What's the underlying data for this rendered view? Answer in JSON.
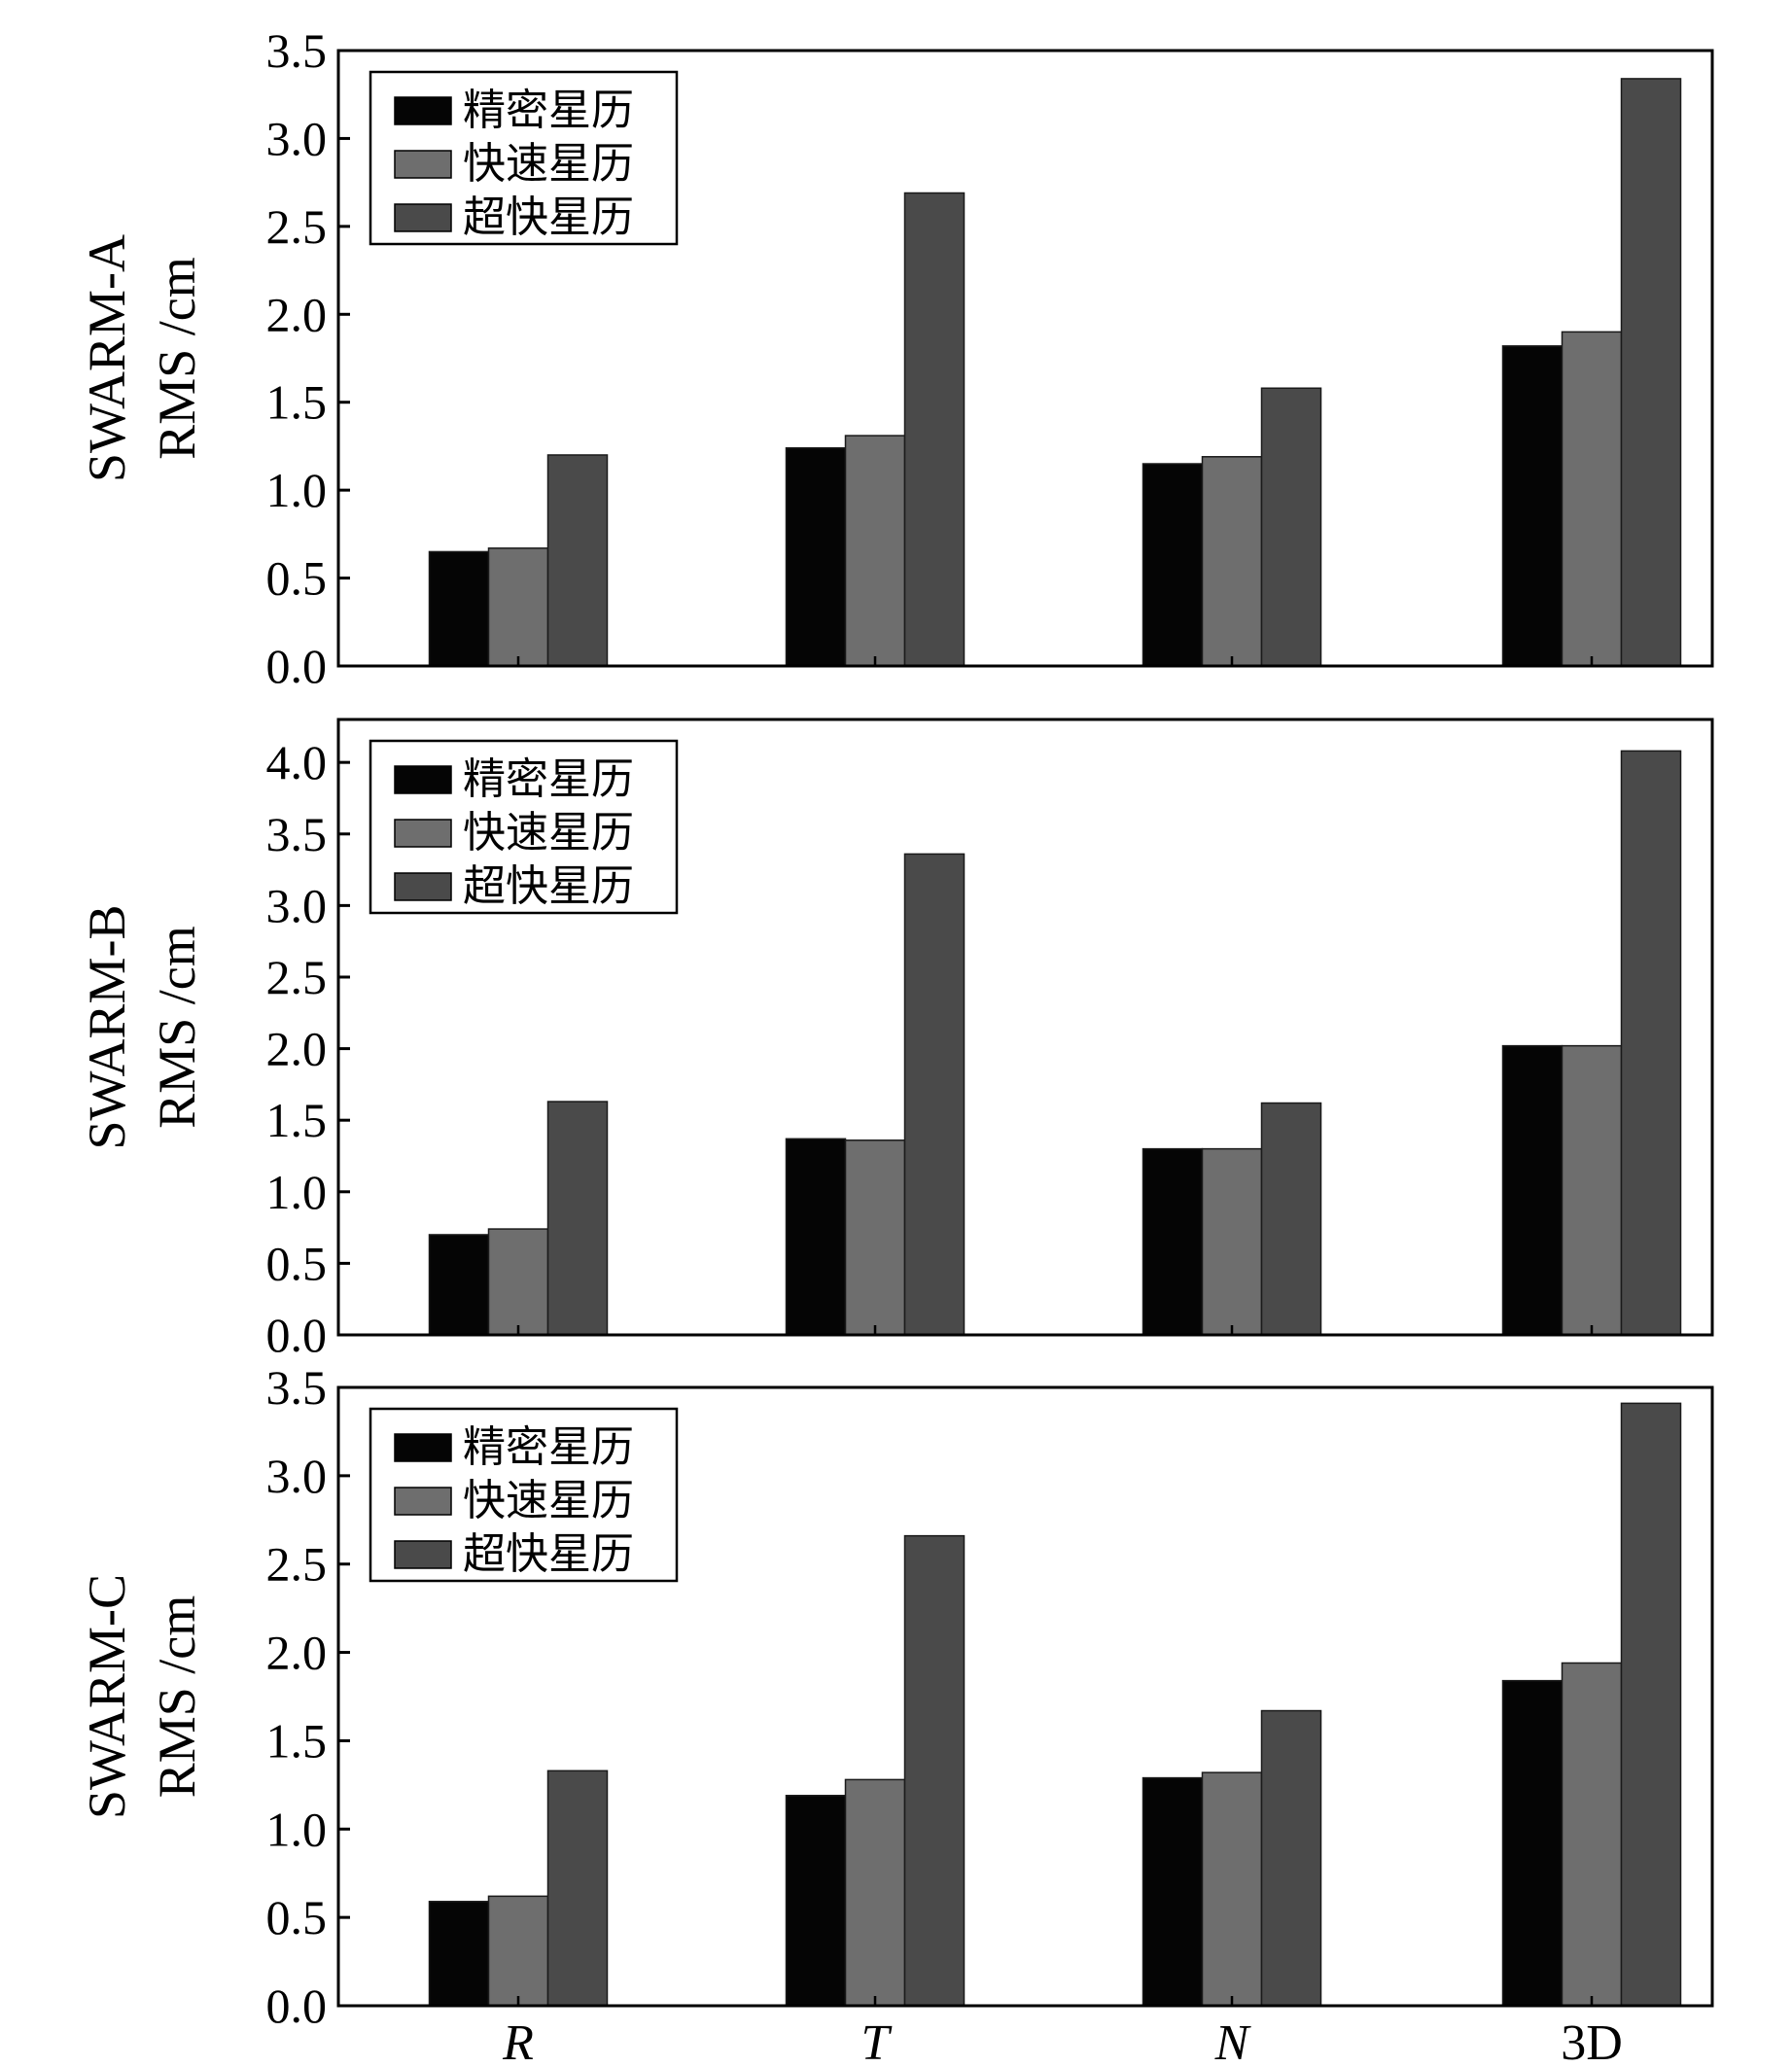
{
  "chart_data": [
    {
      "type": "bar",
      "title": "",
      "ylabel_line1": "SWARM-A",
      "ylabel_line2": "RMS /cm",
      "xlabel": "",
      "ylim": [
        0,
        3.5
      ],
      "yticks": [
        "0.0",
        "0.5",
        "1.0",
        "1.5",
        "2.0",
        "2.5",
        "3.0",
        "3.5"
      ],
      "categories": [
        "R",
        "T",
        "N",
        "3D"
      ],
      "legend_position": "top-left",
      "series": [
        {
          "name": "精密星历",
          "color": "#050505",
          "values": [
            0.65,
            1.24,
            1.15,
            1.82
          ]
        },
        {
          "name": "快速星历",
          "color": "#6e6e6e",
          "values": [
            0.67,
            1.31,
            1.19,
            1.9
          ]
        },
        {
          "name": "超快星历",
          "color": "#4a4a4a",
          "values": [
            1.2,
            2.69,
            1.58,
            3.34
          ]
        }
      ]
    },
    {
      "type": "bar",
      "title": "",
      "ylabel_line1": "SWARM-B",
      "ylabel_line2": "RMS /cm",
      "xlabel": "",
      "ylim": [
        0,
        4.3
      ],
      "yticks": [
        "0.0",
        "0.5",
        "1.0",
        "1.5",
        "2.0",
        "2.5",
        "3.0",
        "3.5",
        "4.0"
      ],
      "categories": [
        "R",
        "T",
        "N",
        "3D"
      ],
      "legend_position": "top-left",
      "series": [
        {
          "name": "精密星历",
          "color": "#050505",
          "values": [
            0.7,
            1.37,
            1.3,
            2.02
          ]
        },
        {
          "name": "快速星历",
          "color": "#6e6e6e",
          "values": [
            0.74,
            1.36,
            1.3,
            2.02
          ]
        },
        {
          "name": "超快星历",
          "color": "#4a4a4a",
          "values": [
            1.63,
            3.36,
            1.62,
            4.08
          ]
        }
      ]
    },
    {
      "type": "bar",
      "title": "",
      "ylabel_line1": "SWARM-C",
      "ylabel_line2": "RMS /cm",
      "xlabel": "",
      "ylim": [
        0,
        3.5
      ],
      "yticks": [
        "0.0",
        "0.5",
        "1.0",
        "1.5",
        "2.0",
        "2.5",
        "3.0",
        "3.5"
      ],
      "categories": [
        "R",
        "T",
        "N",
        "3D"
      ],
      "legend_position": "top-left",
      "series": [
        {
          "name": "精密星历",
          "color": "#050505",
          "values": [
            0.59,
            1.19,
            1.29,
            1.84
          ]
        },
        {
          "name": "快速星历",
          "color": "#6e6e6e",
          "values": [
            0.62,
            1.28,
            1.32,
            1.94
          ]
        },
        {
          "name": "超快星历",
          "color": "#4a4a4a",
          "values": [
            1.33,
            2.66,
            1.67,
            3.41
          ]
        }
      ]
    }
  ]
}
